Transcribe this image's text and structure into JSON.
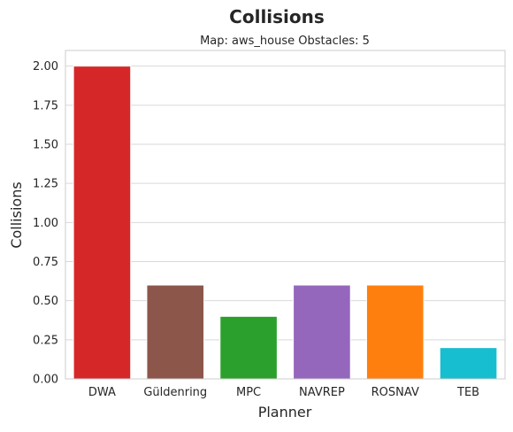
{
  "chart_data": {
    "type": "bar",
    "title": "Collisions",
    "subtitle": "Map: aws_house Obstacles: 5",
    "xlabel": "Planner",
    "ylabel": "Collisions",
    "categories": [
      "DWA",
      "Güldenring",
      "MPC",
      "NAVREP",
      "ROSNAV",
      "TEB"
    ],
    "values": [
      2.0,
      0.6,
      0.4,
      0.6,
      0.6,
      0.2
    ],
    "colors": [
      "#d62728",
      "#8c564b",
      "#2ca02c",
      "#9467bd",
      "#ff7f0e",
      "#17becf"
    ],
    "ylim": [
      0,
      2.1
    ],
    "yticks": [
      "0.00",
      "0.25",
      "0.50",
      "0.75",
      "1.00",
      "1.25",
      "1.50",
      "1.75",
      "2.00"
    ],
    "grid": true,
    "legend": "none"
  }
}
